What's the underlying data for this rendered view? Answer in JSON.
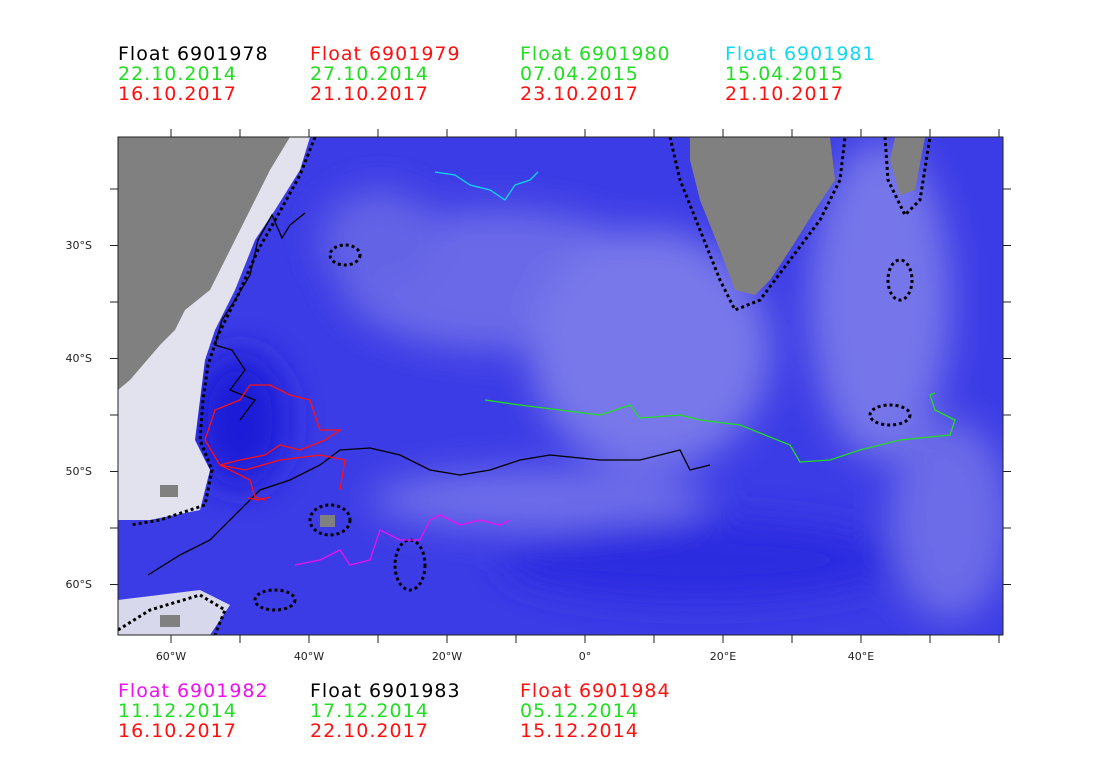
{
  "legend": {
    "floats": [
      {
        "name": "Float 6901978",
        "start": "22.10.2014",
        "end": "16.10.2017",
        "color": "#000000"
      },
      {
        "name": "Float 6901979",
        "start": "27.10.2014",
        "end": "21.10.2017",
        "color": "#ff1010"
      },
      {
        "name": "Float 6901980",
        "start": "07.04.2015",
        "end": "23.10.2017",
        "color": "#22dd22"
      },
      {
        "name": "Float 6901981",
        "start": "15.04.2015",
        "end": "21.10.2017",
        "color": "#10d8f0"
      },
      {
        "name": "Float 6901982",
        "start": "11.12.2014",
        "end": "16.10.2017",
        "color": "#ee10ee"
      },
      {
        "name": "Float 6901983",
        "start": "17.12.2014",
        "end": "22.10.2017",
        "color": "#000000"
      },
      {
        "name": "Float 6901984",
        "start": "05.12.2014",
        "end": "15.12.2014",
        "color": "#ff1010"
      }
    ]
  },
  "map": {
    "x_tick_labels": [
      "60°W",
      "40°W",
      "20°W",
      "0°",
      "20°E",
      "40°E"
    ],
    "y_tick_labels": [
      "30°S",
      "40°S",
      "50°S",
      "60°S"
    ]
  }
}
